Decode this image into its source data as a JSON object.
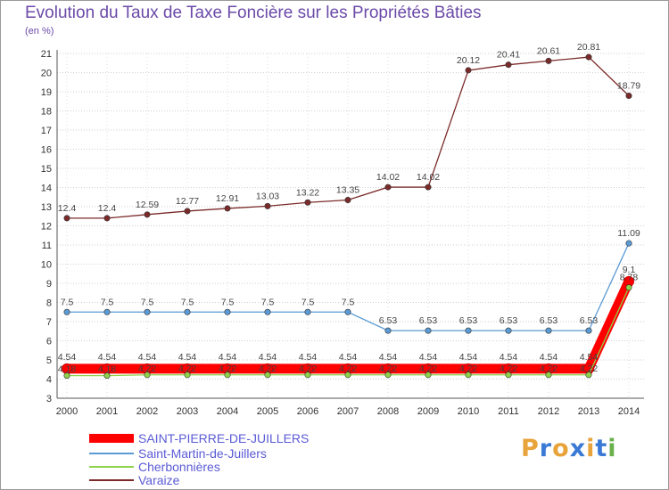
{
  "chart_data": {
    "type": "line",
    "title": "Evolution du Taux de Taxe Foncière sur les Propriétés Bâties",
    "unit_label": "(en %)",
    "categories": [
      "2000",
      "2001",
      "2002",
      "2003",
      "2004",
      "2005",
      "2006",
      "2007",
      "2008",
      "2009",
      "2010",
      "2011",
      "2012",
      "2013",
      "2014"
    ],
    "ylim": [
      3,
      21
    ],
    "yticks": [
      3,
      4,
      5,
      6,
      7,
      8,
      9,
      10,
      11,
      12,
      13,
      14,
      15,
      16,
      17,
      18,
      19,
      20,
      21
    ],
    "series": [
      {
        "name": "SAINT-PIERRE-DE-JUILLERS",
        "color": "#ff0000",
        "values": [
          4.54,
          4.54,
          4.54,
          4.54,
          4.54,
          4.54,
          4.54,
          4.54,
          4.54,
          4.54,
          4.54,
          4.54,
          4.54,
          4.54,
          9.1
        ],
        "labels": [
          "4.54",
          "4.54",
          "4.54",
          "4.54",
          "4.54",
          "4.54",
          "4.54",
          "4.54",
          "4.54",
          "4.54",
          "4.54",
          "4.54",
          "4.54",
          "4.54",
          "9.1"
        ]
      },
      {
        "name": "Saint-Martin-de-Juillers",
        "color": "#5b9bd5",
        "values": [
          7.5,
          7.5,
          7.5,
          7.5,
          7.5,
          7.5,
          7.5,
          7.5,
          6.53,
          6.53,
          6.53,
          6.53,
          6.53,
          6.53,
          11.09
        ],
        "labels": [
          "7.5",
          "7.5",
          "7.5",
          "7.5",
          "7.5",
          "7.5",
          "7.5",
          "7.5",
          "6.53",
          "6.53",
          "6.53",
          "6.53",
          "6.53",
          "6.53",
          "11.09"
        ]
      },
      {
        "name": "Cherbonnières",
        "color": "#8ed24a",
        "values": [
          4.18,
          4.18,
          4.22,
          4.22,
          4.22,
          4.22,
          4.22,
          4.22,
          4.22,
          4.22,
          4.22,
          4.22,
          4.22,
          4.22,
          8.78
        ],
        "labels": [
          "4.18",
          "4.18",
          "4.22",
          "4.22",
          "4.22",
          "4.22",
          "4.22",
          "4.22",
          "4.22",
          "4.22",
          "4.22",
          "4.22",
          "4.22",
          "4.22",
          "8.78"
        ]
      },
      {
        "name": "Varaize",
        "color": "#7b2a2a",
        "values": [
          12.4,
          12.4,
          12.59,
          12.77,
          12.91,
          13.03,
          13.22,
          13.35,
          14.02,
          14.02,
          20.12,
          20.41,
          20.61,
          20.81,
          18.79
        ],
        "labels": [
          "12.4",
          "12.4",
          "12.59",
          "12.77",
          "12.91",
          "13.03",
          "13.22",
          "13.35",
          "14.02",
          "14.02",
          "20.12",
          "20.41",
          "20.61",
          "20.81",
          "18.79"
        ]
      }
    ],
    "legend": {
      "placement": "bottom-left",
      "entries": [
        "SAINT-PIERRE-DE-JUILLERS",
        "Saint-Martin-de-Juillers",
        "Cherbonnières",
        "Varaize"
      ]
    }
  },
  "logo": {
    "text": "Proxiti"
  }
}
